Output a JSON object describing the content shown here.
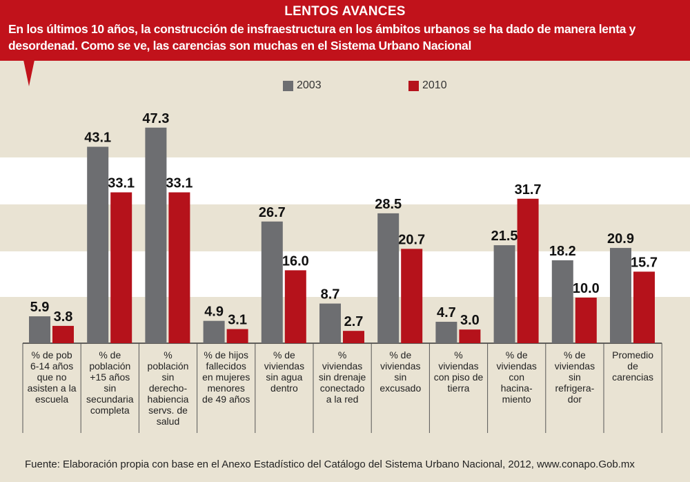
{
  "header": {
    "title": "LENTOS AVANCES",
    "subtitle": "En los últimos 10 años, la construcción de insfraestructura en los ámbitos urbanos se ha dado de manera lenta y desordenad. Como se ve, las carencias son muchas en el Sistema Urbano Nacional"
  },
  "legend": [
    "2003",
    "2010"
  ],
  "colors": {
    "2003": "#6d6e71",
    "2010": "#b5121b",
    "header": "#c1121b"
  },
  "source": "Fuente: Elaboración propia con base en el Anexo Estadístico del Catálogo del Sistema Urbano Nacional, 2012, www.conapo.Gob.mx",
  "chart_data": {
    "type": "bar",
    "title": "LENTOS AVANCES",
    "categories": [
      [
        "% de pob",
        "6-14 años",
        "que no",
        "asisten a la",
        "escuela"
      ],
      [
        "% de",
        "población",
        "+15 años",
        "sin",
        "secundaria",
        "completa"
      ],
      [
        "%",
        "población",
        "sin",
        "derecho-",
        "habiencia",
        "servs. de",
        "salud"
      ],
      [
        "% de hijos",
        "fallecidos",
        "en mujeres",
        "menores",
        "de 49 años"
      ],
      [
        "% de",
        "viviendas",
        "sin agua",
        "dentro"
      ],
      [
        "%",
        "viviendas",
        "sin drenaje",
        "conectado",
        "a la red"
      ],
      [
        "% de",
        "viviendas",
        "sin",
        "excusado"
      ],
      [
        "%",
        "viviendas",
        "con piso de",
        "tierra"
      ],
      [
        "% de",
        "viviendas",
        "con",
        "hacina-",
        "miento"
      ],
      [
        "% de",
        "viviendas",
        "sin",
        "refrigera-",
        "dor"
      ],
      [
        "Promedio",
        "de",
        "carencias"
      ]
    ],
    "series": [
      {
        "name": "2003",
        "values": [
          5.9,
          43.1,
          47.3,
          4.9,
          26.7,
          8.7,
          28.5,
          4.7,
          21.5,
          18.2,
          20.9
        ],
        "labels": [
          "5.9",
          "43.1",
          "47.3",
          "4.9",
          "26.7",
          "8.7",
          "28.5",
          "4.7",
          "21.5",
          "18.2",
          "20.9"
        ]
      },
      {
        "name": "2010",
        "values": [
          3.8,
          33.1,
          33.1,
          3.1,
          16.0,
          2.7,
          20.7,
          3.0,
          31.7,
          10.0,
          15.7
        ],
        "labels": [
          "3.8",
          "33.1",
          "33.1",
          "3.1",
          "16.0",
          "2.7",
          "20.7",
          "3.0",
          "31.7",
          "10.0",
          "15.7"
        ]
      }
    ],
    "ylim": [
      0,
      50
    ],
    "grid": false,
    "legend_position": "top-center"
  }
}
